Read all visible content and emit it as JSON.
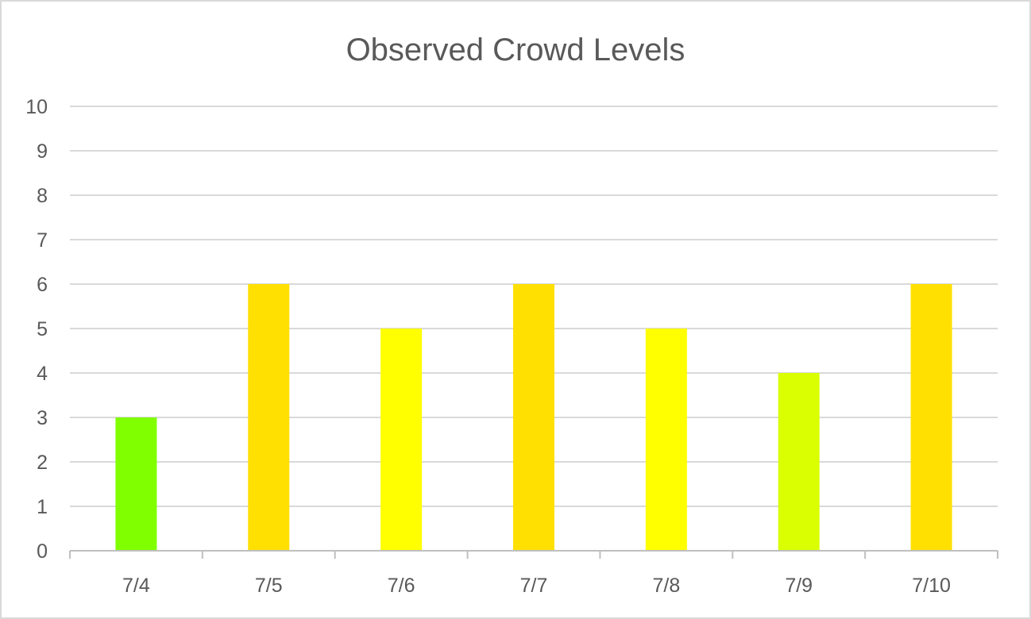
{
  "chart_data": {
    "type": "bar",
    "title": "Observed Crowd Levels",
    "xlabel": "",
    "ylabel": "",
    "categories": [
      "7/4",
      "7/5",
      "7/6",
      "7/7",
      "7/8",
      "7/9",
      "7/10"
    ],
    "values": [
      3,
      6,
      5,
      6,
      5,
      4,
      6
    ],
    "bar_colors": [
      "#80ff00",
      "#ffe000",
      "#ffff00",
      "#ffe000",
      "#ffff00",
      "#d9ff00",
      "#ffe000"
    ],
    "ylim": [
      0,
      10
    ],
    "yticks": [
      0,
      1,
      2,
      3,
      4,
      5,
      6,
      7,
      8,
      9,
      10
    ],
    "grid": true,
    "legend": "none",
    "colors": {
      "grid": "#d9d9d9",
      "text": "#595959",
      "axis": "#bfbfbf"
    }
  }
}
